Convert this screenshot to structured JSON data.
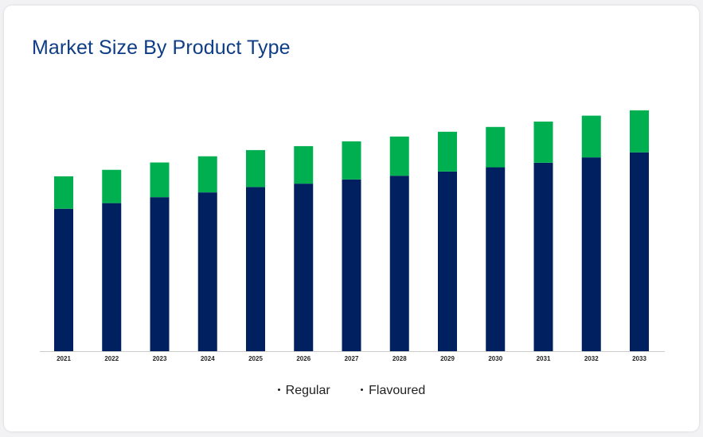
{
  "page": {
    "title": "Market Size By Product Type"
  },
  "colors": {
    "regular": "#00205f",
    "flavoured": "#00b050",
    "title": "#0e3d86",
    "axis": "#cccccc"
  },
  "chart_data": {
    "type": "bar",
    "stacked": true,
    "title": "Market Size By Product Type",
    "xlabel": "",
    "ylabel": "",
    "y_axis_shown": false,
    "grid": false,
    "legend_position": "bottom",
    "ylim": [
      0,
      100
    ],
    "categories": [
      "2021",
      "2022",
      "2023",
      "2024",
      "2025",
      "2026",
      "2027",
      "2028",
      "2029",
      "2030",
      "2031",
      "2032",
      "2033"
    ],
    "series": [
      {
        "name": "Regular",
        "values": [
          50.5,
          52.5,
          54.6,
          56.3,
          58.2,
          59.4,
          60.9,
          62.2,
          63.7,
          65.2,
          66.8,
          68.7,
          70.5
        ]
      },
      {
        "name": "Flavoured",
        "values": [
          11.5,
          11.8,
          12.3,
          12.8,
          13.1,
          13.3,
          13.5,
          13.9,
          14.1,
          14.3,
          14.6,
          14.8,
          14.9
        ]
      }
    ]
  }
}
